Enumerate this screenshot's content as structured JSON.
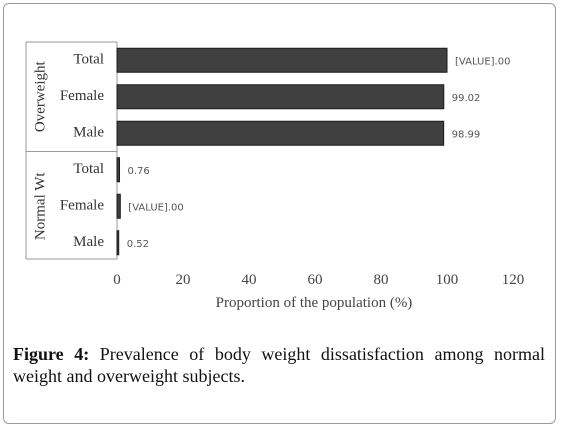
{
  "chart_data": {
    "type": "bar",
    "orientation": "horizontal",
    "groups": [
      {
        "name": "Overweight",
        "categories": [
          "Total",
          "Female",
          "Male"
        ],
        "values": [
          100.0,
          99.02,
          98.99
        ],
        "value_labels": [
          "[VALUE].00",
          "99.02",
          "98.99"
        ]
      },
      {
        "name": "Normal Wt",
        "categories": [
          "Total",
          "Female",
          "Male"
        ],
        "values": [
          0.76,
          1.0,
          0.52
        ],
        "value_labels": [
          "0.76",
          "[VALUE].00",
          "0.52"
        ]
      }
    ],
    "xticks": [
      "0",
      "20",
      "40",
      "60",
      "80",
      "100",
      "120"
    ],
    "xlim": [
      0,
      120
    ],
    "xlabel": "Proportion of the population (%)",
    "bar_color": "#404040",
    "grid": false
  },
  "caption": {
    "prefix": "Figure 4:",
    "text": " Prevalence of body weight dissatisfaction among normal weight and overweight subjects."
  }
}
